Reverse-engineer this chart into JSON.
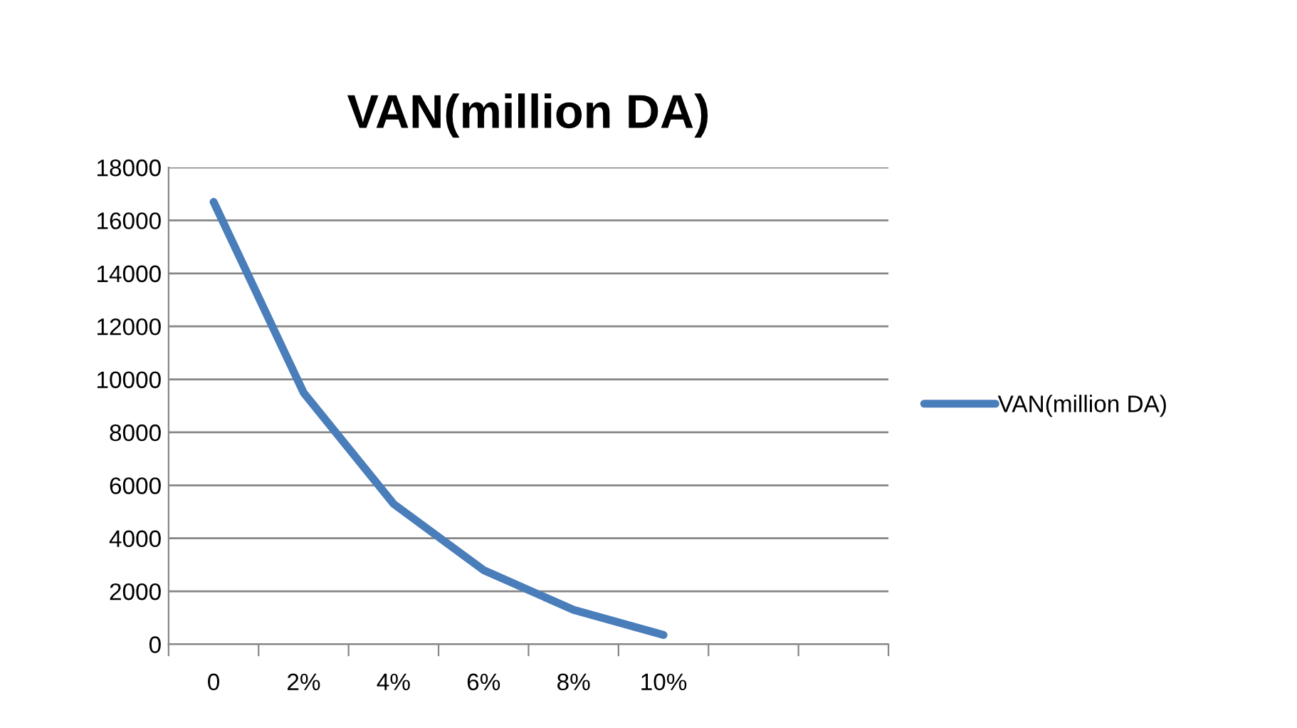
{
  "chart_data": {
    "type": "line",
    "title": "VAN(million DA)",
    "categories": [
      "0",
      "2%",
      "4%",
      "6%",
      "8%",
      "10%",
      null,
      null
    ],
    "series": [
      {
        "name": "VAN(million DA)",
        "color": "#4a7ebb",
        "values": [
          16700,
          9500,
          5300,
          2800,
          1300,
          350,
          null,
          null
        ]
      }
    ],
    "ylim": [
      0,
      18000
    ],
    "yticks": [
      0,
      2000,
      4000,
      6000,
      8000,
      10000,
      12000,
      14000,
      16000,
      18000
    ],
    "grid": "y",
    "legend": "right",
    "marker": "none",
    "line_style": "solid"
  }
}
